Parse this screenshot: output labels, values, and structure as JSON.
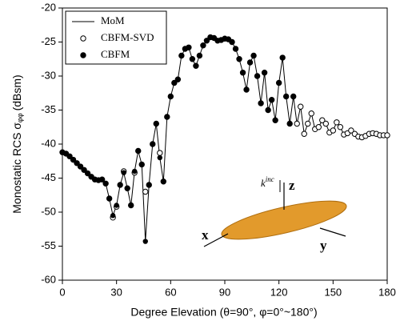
{
  "chart_data": {
    "type": "line-scatter",
    "x_label": "Degree Elevation (θ=90°, φ=0°~180°)",
    "y_label": {
      "text": "Monostatic RCS σ",
      "subscript": "φφ",
      "unit": "(dBsm)"
    },
    "xlim": [
      0,
      180
    ],
    "xticks": [
      0,
      30,
      60,
      90,
      120,
      150,
      180
    ],
    "ylim": [
      -60,
      -20
    ],
    "yticks": [
      -60,
      -55,
      -50,
      -45,
      -40,
      -35,
      -30,
      -25,
      -20
    ],
    "legend": "top-left",
    "x": [
      0,
      2,
      4,
      6,
      8,
      10,
      12,
      14,
      16,
      18,
      20,
      22,
      24,
      26,
      28,
      30,
      32,
      34,
      36,
      38,
      40,
      42,
      44,
      46,
      48,
      50,
      52,
      54,
      56,
      58,
      60,
      62,
      64,
      66,
      68,
      70,
      72,
      74,
      76,
      78,
      80,
      82,
      84,
      86,
      88,
      90,
      92,
      94,
      96,
      98,
      100,
      102,
      104,
      106,
      108,
      110,
      112,
      114,
      116,
      118,
      120,
      122,
      124,
      126,
      128,
      130,
      132,
      134,
      136,
      138,
      140,
      142,
      144,
      146,
      148,
      150,
      152,
      154,
      156,
      158,
      160,
      162,
      164,
      166,
      168,
      170,
      172,
      174,
      176,
      178,
      180
    ],
    "series": [
      {
        "name": "MoM",
        "style": "line",
        "color": "#000000",
        "values": [
          -41.2,
          -41.4,
          -41.8,
          -42.3,
          -42.8,
          -43.3,
          -43.8,
          -44.3,
          -44.8,
          -45.2,
          -45.3,
          -45.2,
          -45.8,
          -48,
          -50.5,
          -49,
          -46,
          -44.2,
          -46.5,
          -49,
          -44,
          -41,
          -43,
          -54.3,
          -46,
          -40,
          -37,
          -42,
          -45.5,
          -36,
          -33,
          -31,
          -30.5,
          -27,
          -26,
          -25.8,
          -27.5,
          -28.5,
          -27,
          -25.5,
          -24.8,
          -24.3,
          -24.4,
          -24.8,
          -24.7,
          -24.5,
          -24.6,
          -25,
          -26,
          -27.5,
          -29.5,
          -32,
          -28,
          -27,
          -30,
          -34,
          -29.5,
          -35,
          -33.5,
          -36.5,
          -31,
          -27.3,
          -33,
          -37,
          -33,
          -37,
          -34.5,
          -38.5,
          -37,
          -35.5,
          -37.8,
          -37.5,
          -36.5,
          -37,
          -38.3,
          -38,
          -36.8,
          -37.5,
          -38.6,
          -38.4,
          -38,
          -38.5,
          -38.9,
          -39,
          -38.8,
          -38.5,
          -38.4,
          -38.5,
          -38.7,
          -38.7,
          -38.7
        ]
      },
      {
        "name": "CBFM-SVD",
        "style": "open-marker",
        "color": "#000000",
        "values": [
          -41.2,
          -41.4,
          -41.8,
          -42.3,
          -42.8,
          -43.3,
          -43.8,
          -44.3,
          -44.8,
          -45.2,
          -45.3,
          -45.2,
          -45.8,
          -48,
          -50.8,
          -49.2,
          -46,
          -44,
          -46.5,
          -49,
          -44.2,
          -41,
          -43,
          -47,
          -46,
          -40,
          -37,
          -41.3,
          -45.5,
          -36,
          -33,
          -31,
          -30.5,
          -27,
          -26,
          -25.8,
          -27.5,
          -28.5,
          -27,
          -25.5,
          -24.8,
          -24.3,
          -24.4,
          -24.8,
          -24.7,
          -24.5,
          -24.6,
          -25,
          -26,
          -27.5,
          -29.5,
          -32,
          -28,
          -27,
          -30,
          -34,
          -29.5,
          -35,
          -33.5,
          -36.5,
          -31,
          -27.3,
          -33,
          -37,
          -33,
          -37,
          -34.5,
          -38.5,
          -37,
          -35.5,
          -37.8,
          -37.5,
          -36.5,
          -37,
          -38.3,
          -38,
          -36.8,
          -37.5,
          -38.6,
          -38.4,
          -38,
          -38.5,
          -38.9,
          -39,
          -38.8,
          -38.5,
          -38.4,
          -38.5,
          -38.7,
          -38.7,
          -38.7
        ]
      },
      {
        "name": "CBFM",
        "style": "filled-marker",
        "color": "#000000",
        "values": [
          -41.2,
          -41.4,
          -41.8,
          -42.3,
          -42.8,
          -43.3,
          -43.8,
          -44.3,
          -44.8,
          -45.2,
          -45.3,
          -45.2,
          -45.8,
          -48,
          -50.5,
          -49,
          -46,
          -44.2,
          -46.5,
          -49,
          -44,
          -41,
          -43,
          -54.3,
          -46,
          -40,
          -37,
          -42,
          -45.5,
          -36,
          -33,
          -31,
          -30.5,
          -27,
          -26,
          -25.8,
          -27.5,
          -28.5,
          -27,
          -25.5,
          -24.8,
          -24.3,
          -24.4,
          -24.8,
          -24.7,
          -24.5,
          -24.6,
          -25,
          -26,
          -27.5,
          -29.5,
          -32,
          -28,
          -27,
          -30,
          -34,
          -29.5,
          -35,
          -33.5,
          -36.5,
          -31,
          -27.3,
          -33,
          -37,
          -33,
          null,
          null,
          null,
          null,
          null,
          null,
          null,
          null,
          null,
          null,
          null,
          null,
          null,
          null,
          null,
          null,
          null,
          null,
          null,
          null,
          null,
          null,
          null,
          null,
          null,
          null
        ]
      }
    ],
    "inset": {
      "k": "k",
      "k_sup": "inc",
      "z": "z",
      "x": "x",
      "y": "y"
    }
  }
}
